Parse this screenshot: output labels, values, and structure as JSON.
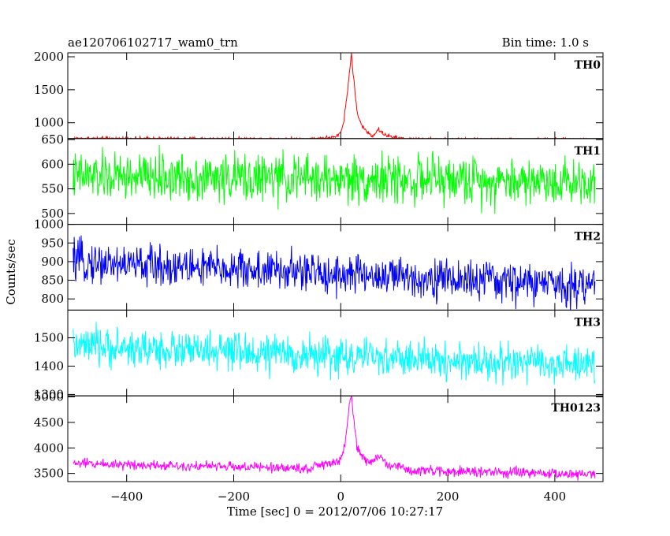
{
  "chart_data": {
    "type": "line",
    "title": "ae120706102717_wam0_trn",
    "subtitle": "Bin time: 1.0 s",
    "xlabel": "Time [sec] 0 = 2012/07/06 10:27:17",
    "ylabel": "Counts/sec",
    "xlim": [
      -510,
      490
    ],
    "xticks": [
      -400,
      -200,
      0,
      200,
      400
    ],
    "xticklabels": [
      "−400",
      "−200",
      "0",
      "200",
      "400"
    ],
    "grid": false,
    "panels": [
      {
        "name": "TH0",
        "color": "#ff0000",
        "ylim": [
          760,
          2060
        ],
        "yticks": [
          1000,
          1500,
          2000
        ],
        "yticklabels": [
          "1000",
          "1500",
          "2000"
        ],
        "x_range": [
          -500,
          475
        ],
        "baseline_start": 760,
        "baseline_end": 740,
        "noise_amp": 25,
        "peak_points": [
          [
            -50,
            760
          ],
          [
            -10,
            780
          ],
          [
            0,
            850
          ],
          [
            5,
            1000
          ],
          [
            10,
            1300
          ],
          [
            13,
            1500
          ],
          [
            16,
            1750
          ],
          [
            18,
            1900
          ],
          [
            20,
            2050
          ],
          [
            22,
            1850
          ],
          [
            25,
            1600
          ],
          [
            28,
            1350
          ],
          [
            32,
            1100
          ],
          [
            40,
            950
          ],
          [
            50,
            850
          ],
          [
            60,
            800
          ],
          [
            70,
            900
          ],
          [
            80,
            830
          ],
          [
            95,
            780
          ],
          [
            120,
            760
          ]
        ]
      },
      {
        "name": "TH1",
        "color": "#00ff00",
        "ylim": [
          478,
          652
        ],
        "yticks": [
          500,
          550,
          600,
          650
        ],
        "yticklabels": [
          "500",
          "550",
          "600",
          "650"
        ],
        "x_range": [
          -500,
          475
        ],
        "baseline_start": 575,
        "baseline_end": 565,
        "noise_amp": 40,
        "peak_points": []
      },
      {
        "name": "TH2",
        "color": "#0000ff",
        "ylim": [
          770,
          1000
        ],
        "yticks": [
          800,
          850,
          900,
          950,
          1000
        ],
        "yticklabels": [
          "800",
          "850",
          "900",
          "950",
          "1000"
        ],
        "x_range": [
          -500,
          475
        ],
        "baseline_start": 900,
        "baseline_end": 835,
        "noise_amp": 45,
        "peak_points": []
      },
      {
        "name": "TH3",
        "color": "#00ffff",
        "ylim": [
          1295,
          1598
        ],
        "yticks": [
          1300,
          1400,
          1500
        ],
        "yticklabels": [
          "1300",
          "1400",
          "1500"
        ],
        "x_range": [
          -500,
          475
        ],
        "baseline_start": 1470,
        "baseline_end": 1400,
        "noise_amp": 55,
        "peak_points": []
      },
      {
        "name": "TH0123",
        "color": "#ff00ff",
        "ylim": [
          3340,
          5020
        ],
        "yticks": [
          3500,
          4000,
          4500,
          5000
        ],
        "yticklabels": [
          "3500",
          "4000",
          "4500",
          "5000"
        ],
        "x_range": [
          -500,
          475
        ],
        "baseline_start": 3700,
        "baseline_end": 3480,
        "noise_amp": 80,
        "peak_points": [
          [
            -50,
            3650
          ],
          [
            -10,
            3700
          ],
          [
            0,
            3800
          ],
          [
            5,
            3950
          ],
          [
            10,
            4200
          ],
          [
            13,
            4500
          ],
          [
            16,
            4800
          ],
          [
            18,
            4950
          ],
          [
            20,
            5000
          ],
          [
            22,
            4800
          ],
          [
            25,
            4500
          ],
          [
            28,
            4200
          ],
          [
            32,
            3950
          ],
          [
            40,
            3850
          ],
          [
            50,
            3750
          ],
          [
            60,
            3700
          ],
          [
            70,
            3850
          ],
          [
            80,
            3750
          ],
          [
            95,
            3650
          ],
          [
            120,
            3620
          ]
        ]
      }
    ]
  }
}
